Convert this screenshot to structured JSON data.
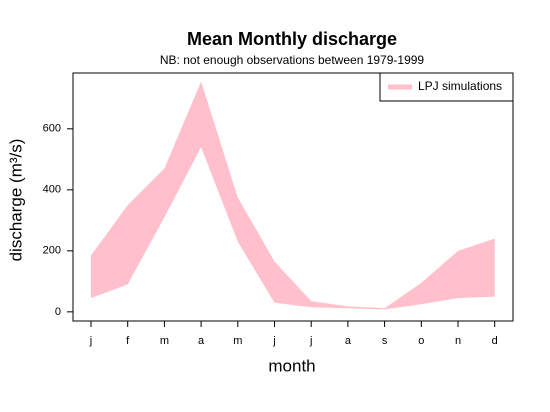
{
  "chart_data": {
    "type": "band",
    "title": "Mean Monthly discharge",
    "subtitle": "NB: not enough observations between 1979-1999",
    "x_label": "month",
    "y_label": "discharge (m³/s)",
    "categories": [
      "j",
      "f",
      "m",
      "a",
      "m",
      "j",
      "j",
      "a",
      "s",
      "o",
      "n",
      "d"
    ],
    "series": [
      {
        "name": "LPJ simulations",
        "color": "#ffc0cb",
        "upper": [
          185,
          350,
          470,
          755,
          375,
          165,
          35,
          18,
          12,
          95,
          200,
          240
        ],
        "lower": [
          45,
          90,
          310,
          540,
          230,
          30,
          15,
          12,
          8,
          25,
          45,
          50
        ]
      }
    ],
    "ylim": [
      -30,
      783
    ],
    "yticks": [
      0,
      200,
      400,
      600
    ],
    "legend": "top-right"
  }
}
